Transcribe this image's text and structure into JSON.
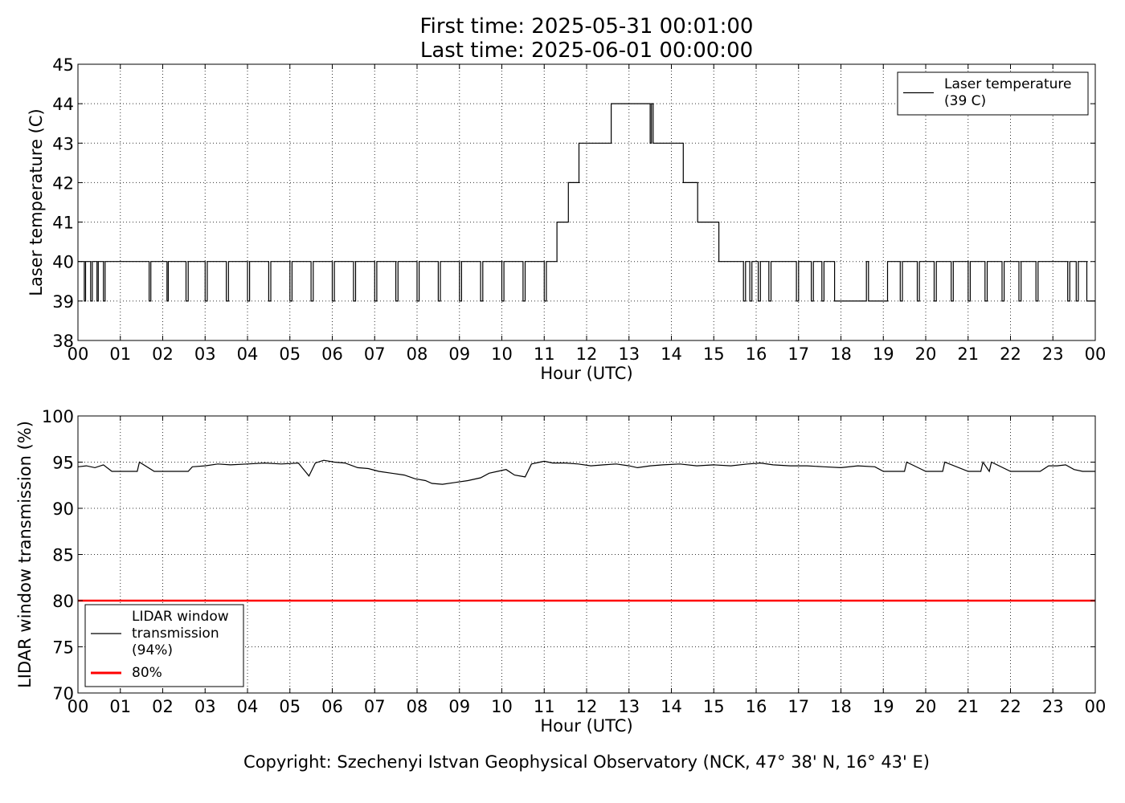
{
  "title": {
    "line1": "First time: 2025-05-31 00:01:00",
    "line2": "Last time: 2025-06-01 00:00:00"
  },
  "copyright": "Copyright: Szechenyi Istvan Geophysical Observatory (NCK, 47° 38' N, 16° 43' E)",
  "chart_data": [
    {
      "type": "line",
      "xlabel": "Hour (UTC)",
      "ylabel": "Laser temperature (C)",
      "xlim": [
        0,
        24
      ],
      "ylim": [
        38,
        45
      ],
      "xtick_labels": [
        "00",
        "01",
        "02",
        "03",
        "04",
        "05",
        "06",
        "07",
        "08",
        "09",
        "10",
        "11",
        "12",
        "13",
        "14",
        "15",
        "16",
        "17",
        "18",
        "19",
        "20",
        "21",
        "22",
        "23",
        "00"
      ],
      "ytick_labels": [
        "38",
        "39",
        "40",
        "41",
        "42",
        "43",
        "44",
        "45"
      ],
      "yticks": [
        38,
        39,
        40,
        41,
        42,
        43,
        44,
        45
      ],
      "grid": true,
      "legend_position": "top-right",
      "series": [
        {
          "name": "Laser temperature\n(39 C)",
          "color": "#000000",
          "step": true,
          "x": [
            0.0,
            0.15,
            0.18,
            0.3,
            0.34,
            0.45,
            0.48,
            0.6,
            0.64,
            1.68,
            1.72,
            2.1,
            2.13,
            2.55,
            2.6,
            3.0,
            3.05,
            3.5,
            3.55,
            4.0,
            4.05,
            4.5,
            4.55,
            5.0,
            5.05,
            5.5,
            5.55,
            6.0,
            6.05,
            6.5,
            6.55,
            7.0,
            7.05,
            7.5,
            7.55,
            8.0,
            8.05,
            8.5,
            8.55,
            9.0,
            9.05,
            9.5,
            9.55,
            10.0,
            10.05,
            10.5,
            10.55,
            11.0,
            11.05,
            11.15,
            11.3,
            11.57,
            11.82,
            12.58,
            13.5,
            13.53,
            13.57,
            13.62,
            14.28,
            14.62,
            14.68,
            15.12,
            15.7,
            15.75,
            15.85,
            15.9,
            16.05,
            16.1,
            16.3,
            16.35,
            16.95,
            17.0,
            17.3,
            17.35,
            17.55,
            17.6,
            17.85,
            17.9,
            18.6,
            18.65,
            19.05,
            19.1,
            19.4,
            19.45,
            19.8,
            19.85,
            20.2,
            20.25,
            20.6,
            20.65,
            21.0,
            21.05,
            21.4,
            21.45,
            21.8,
            21.85,
            22.2,
            22.25,
            22.6,
            22.65,
            22.9,
            23.35,
            23.4,
            23.55,
            23.6,
            23.8,
            23.85,
            24.0
          ],
          "y": [
            40,
            39,
            40,
            39,
            40,
            39,
            40,
            39,
            40,
            39,
            40,
            39,
            40,
            39,
            40,
            39,
            40,
            39,
            40,
            39,
            40,
            39,
            40,
            39,
            40,
            39,
            40,
            39,
            40,
            39,
            40,
            39,
            40,
            39,
            40,
            39,
            40,
            39,
            40,
            39,
            40,
            39,
            40,
            39,
            40,
            39,
            40,
            39,
            40,
            40,
            41,
            42,
            43,
            44,
            43,
            44,
            43,
            43,
            42,
            41,
            41,
            40,
            39,
            40,
            39,
            40,
            39,
            40,
            39,
            40,
            39,
            40,
            39,
            40,
            39,
            40,
            39,
            39,
            40,
            39,
            39,
            40,
            39,
            40,
            39,
            40,
            39,
            40,
            39,
            40,
            39,
            40,
            39,
            40,
            39,
            40,
            39,
            40,
            39,
            40,
            40,
            39,
            40,
            39,
            40,
            39,
            39,
            39
          ]
        }
      ]
    },
    {
      "type": "line",
      "xlabel": "Hour (UTC)",
      "ylabel": "LIDAR window transmission (%)",
      "xlim": [
        0,
        24
      ],
      "ylim": [
        70,
        100
      ],
      "xtick_labels": [
        "00",
        "01",
        "02",
        "03",
        "04",
        "05",
        "06",
        "07",
        "08",
        "09",
        "10",
        "11",
        "12",
        "13",
        "14",
        "15",
        "16",
        "17",
        "18",
        "19",
        "20",
        "21",
        "22",
        "23",
        "00"
      ],
      "ytick_labels": [
        "70",
        "75",
        "80",
        "85",
        "90",
        "95",
        "100"
      ],
      "yticks": [
        70,
        75,
        80,
        85,
        90,
        95,
        100
      ],
      "grid": true,
      "legend_position": "bottom-left",
      "series": [
        {
          "name": "LIDAR window\ntransmission\n(94%)",
          "color": "#000000",
          "x": [
            0.0,
            0.2,
            0.4,
            0.6,
            0.8,
            1.0,
            1.4,
            1.45,
            1.8,
            2.6,
            2.7,
            3.0,
            3.3,
            3.6,
            4.0,
            4.4,
            4.8,
            5.2,
            5.45,
            5.6,
            5.8,
            6.05,
            6.3,
            6.6,
            6.85,
            7.1,
            7.4,
            7.7,
            7.95,
            8.2,
            8.35,
            8.6,
            8.9,
            9.2,
            9.5,
            9.7,
            9.9,
            10.1,
            10.3,
            10.55,
            10.7,
            10.9,
            11.0,
            11.2,
            11.5,
            11.8,
            12.1,
            12.4,
            12.7,
            13.0,
            13.2,
            13.5,
            13.8,
            14.2,
            14.6,
            15.0,
            15.4,
            15.8,
            16.1,
            16.4,
            16.8,
            17.2,
            17.6,
            18.0,
            18.4,
            18.8,
            19.0,
            19.5,
            19.55,
            20.0,
            20.4,
            20.45,
            21.0,
            21.3,
            21.35,
            21.5,
            21.55,
            22.0,
            22.7,
            22.9,
            23.1,
            23.3,
            23.5,
            23.7,
            24.0
          ],
          "y": [
            94.5,
            94.6,
            94.4,
            94.7,
            94.0,
            94.0,
            94.0,
            95.0,
            94.0,
            94.0,
            94.5,
            94.6,
            94.8,
            94.7,
            94.8,
            94.9,
            94.8,
            94.9,
            93.5,
            94.9,
            95.2,
            95.0,
            94.9,
            94.4,
            94.3,
            94.0,
            93.8,
            93.6,
            93.2,
            93.0,
            92.7,
            92.6,
            92.8,
            93.0,
            93.3,
            93.8,
            94.0,
            94.2,
            93.6,
            93.4,
            94.8,
            95.0,
            95.1,
            94.9,
            94.9,
            94.8,
            94.6,
            94.7,
            94.8,
            94.6,
            94.4,
            94.6,
            94.7,
            94.8,
            94.6,
            94.7,
            94.6,
            94.8,
            94.9,
            94.7,
            94.6,
            94.6,
            94.5,
            94.4,
            94.6,
            94.5,
            94.0,
            94.0,
            95.0,
            94.0,
            94.0,
            95.0,
            94.0,
            94.0,
            95.0,
            94.0,
            95.0,
            94.0,
            94.0,
            94.6,
            94.6,
            94.7,
            94.2,
            94.0,
            94.0
          ]
        },
        {
          "name": "80%",
          "color": "#ff0000",
          "x": [
            0,
            24
          ],
          "y": [
            80,
            80
          ]
        }
      ]
    }
  ]
}
